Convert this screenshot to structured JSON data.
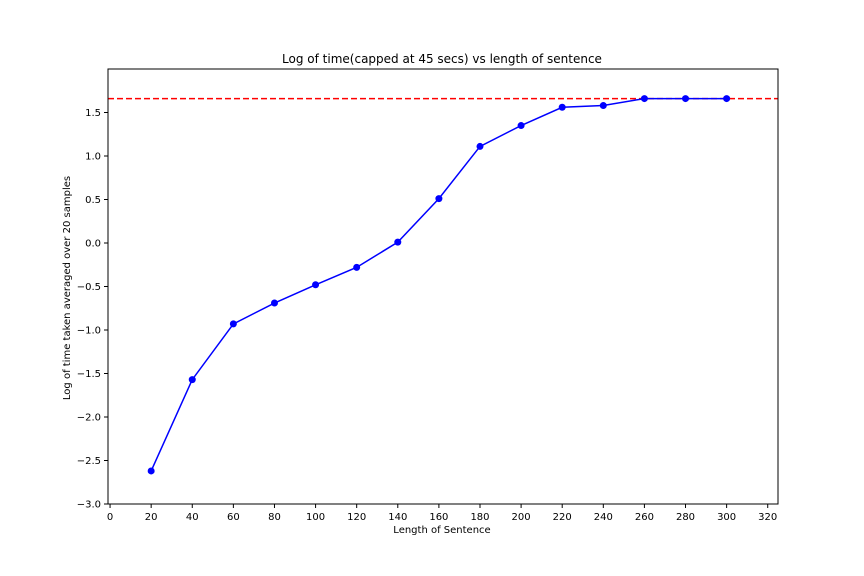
{
  "chart_data": {
    "type": "line",
    "title": "Log of time(capped at 45 secs) vs length of sentence",
    "xlabel": "Length of Sentence",
    "ylabel": "Log of time taken averaged over 20 samples",
    "xlim": [
      -1,
      325
    ],
    "ylim": [
      -3.0,
      2.0
    ],
    "xticks": [
      0,
      20,
      40,
      60,
      80,
      100,
      120,
      140,
      160,
      180,
      200,
      220,
      240,
      260,
      280,
      300,
      320
    ],
    "yticks": [
      -3.0,
      -2.5,
      -2.0,
      -1.5,
      -1.0,
      -0.5,
      0.0,
      0.5,
      1.0,
      1.5
    ],
    "ytick_labels": [
      "−3.0",
      "−2.5",
      "−2.0",
      "−1.5",
      "−1.0",
      "−0.5",
      "0.0",
      "0.5",
      "1.0",
      "1.5"
    ],
    "grid": false,
    "series": [
      {
        "color": "#0000ff",
        "marker": "circle",
        "x": [
          20,
          40,
          60,
          80,
          100,
          120,
          140,
          160,
          180,
          200,
          220,
          240,
          260,
          280,
          300
        ],
        "y": [
          -2.62,
          -1.57,
          -0.93,
          -0.69,
          -0.48,
          -0.28,
          0.01,
          0.51,
          1.11,
          1.35,
          1.56,
          1.58,
          1.66,
          1.66,
          1.66
        ]
      }
    ],
    "reference_lines": [
      {
        "orientation": "horizontal",
        "y": 1.66,
        "color": "#ff0000",
        "style": "dashed"
      }
    ]
  }
}
